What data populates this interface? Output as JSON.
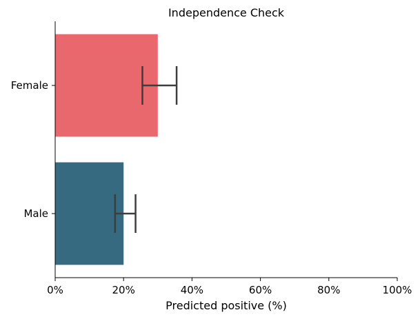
{
  "chart_data": {
    "type": "bar",
    "orientation": "horizontal",
    "title": "Independence Check",
    "xlabel": "Predicted positive (%)",
    "ylabel": "",
    "categories": [
      "Female",
      "Male"
    ],
    "values": [
      30,
      20
    ],
    "error_low": [
      25.5,
      17.5
    ],
    "error_high": [
      35.5,
      23.5
    ],
    "colors": [
      "#e8686d",
      "#366a80"
    ],
    "error_color": "#3d3d3d",
    "xlim": [
      0,
      100
    ],
    "xticks": [
      0,
      20,
      40,
      60,
      80,
      100
    ],
    "xtick_labels": [
      "0%",
      "20%",
      "40%",
      "60%",
      "80%",
      "100%"
    ],
    "grid": false,
    "legend": "none"
  }
}
